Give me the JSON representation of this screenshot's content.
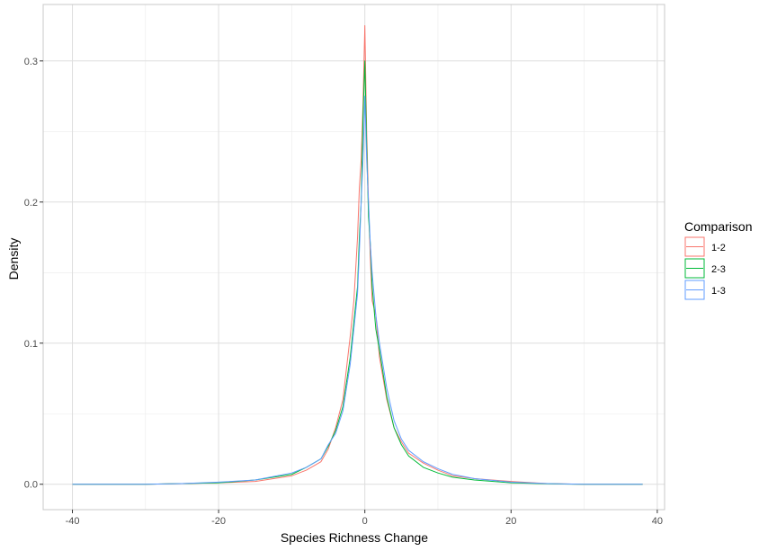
{
  "chart_data": {
    "type": "line",
    "subtype": "density",
    "title": "",
    "xlabel": "Species Richness Change",
    "ylabel": "Density",
    "xlim": [
      -44,
      41
    ],
    "ylim": [
      -0.018,
      0.34
    ],
    "x_ticks": [
      -40,
      -20,
      0,
      20,
      40
    ],
    "x_tick_labels": [
      "-40",
      "-20",
      "0",
      "20",
      "40"
    ],
    "y_ticks": [
      0.0,
      0.1,
      0.2,
      0.3
    ],
    "y_tick_labels": [
      "0.0",
      "0.1",
      "0.2",
      "0.3"
    ],
    "grid": true,
    "legend": {
      "title": "Comparison",
      "position": "right"
    },
    "series": [
      {
        "name": "1-2",
        "color": "#F8766D",
        "x": [
          -40,
          -30,
          -25,
          -20,
          -15,
          -10,
          -8,
          -6,
          -5,
          -4,
          -3,
          -2,
          -1.5,
          -1,
          -0.75,
          -0.5,
          -0.25,
          0,
          0.25,
          0.5,
          0.75,
          1,
          1.5,
          2,
          3,
          4,
          5,
          6,
          8,
          10,
          12,
          15,
          20,
          25,
          30,
          38
        ],
        "y": [
          0,
          0,
          0.0005,
          0.001,
          0.002,
          0.006,
          0.01,
          0.016,
          0.025,
          0.04,
          0.06,
          0.105,
          0.13,
          0.175,
          0.21,
          0.23,
          0.27,
          0.325,
          0.25,
          0.2,
          0.16,
          0.13,
          0.12,
          0.09,
          0.06,
          0.04,
          0.03,
          0.022,
          0.015,
          0.01,
          0.006,
          0.004,
          0.002,
          0.0005,
          0,
          0
        ]
      },
      {
        "name": "2-3",
        "color": "#00BA38",
        "x": [
          -40,
          -30,
          -25,
          -20,
          -15,
          -10,
          -8,
          -6,
          -5,
          -4,
          -3,
          -2,
          -1.5,
          -1,
          -0.75,
          -0.5,
          -0.25,
          0,
          0.25,
          0.5,
          0.75,
          1,
          1.5,
          2,
          3,
          4,
          5,
          6,
          8,
          10,
          12,
          15,
          20,
          25,
          30,
          38
        ],
        "y": [
          0,
          0,
          0.0005,
          0.001,
          0.003,
          0.007,
          0.012,
          0.018,
          0.027,
          0.038,
          0.055,
          0.09,
          0.115,
          0.14,
          0.175,
          0.2,
          0.26,
          0.3,
          0.24,
          0.19,
          0.17,
          0.14,
          0.11,
          0.095,
          0.062,
          0.04,
          0.028,
          0.02,
          0.012,
          0.008,
          0.005,
          0.003,
          0.001,
          0.0003,
          0,
          0
        ]
      },
      {
        "name": "1-3",
        "color": "#619CFF",
        "x": [
          -40,
          -30,
          -25,
          -20,
          -15,
          -10,
          -8,
          -6,
          -5,
          -4,
          -3,
          -2,
          -1.5,
          -1,
          -0.75,
          -0.5,
          -0.25,
          0,
          0.25,
          0.5,
          0.75,
          1,
          1.5,
          2,
          3,
          4,
          5,
          6,
          8,
          10,
          12,
          15,
          20,
          25,
          30,
          38
        ],
        "y": [
          0,
          0,
          0.0005,
          0.0015,
          0.003,
          0.008,
          0.012,
          0.018,
          0.028,
          0.036,
          0.052,
          0.085,
          0.11,
          0.135,
          0.165,
          0.2,
          0.23,
          0.275,
          0.23,
          0.2,
          0.17,
          0.15,
          0.12,
          0.1,
          0.068,
          0.045,
          0.032,
          0.024,
          0.016,
          0.011,
          0.007,
          0.004,
          0.0015,
          0.0005,
          0,
          0
        ]
      }
    ]
  }
}
